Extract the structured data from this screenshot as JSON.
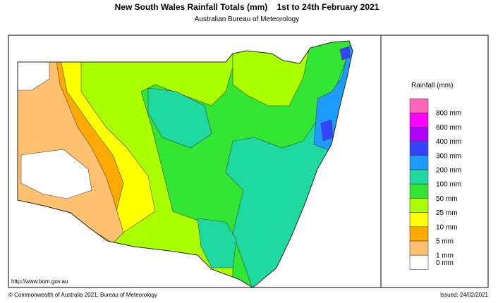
{
  "header": {
    "title": "New South Wales Rainfall Totals (mm)    1st to 24th February 2021",
    "subtitle": "Australian Bureau of Meteorology"
  },
  "legend": {
    "title": "Rainfall (mm)",
    "colors": [
      "#ff66bb",
      "#ff00ff",
      "#b000ff",
      "#3344ff",
      "#1e9bff",
      "#1fdaa0",
      "#33e633",
      "#aaff00",
      "#ffff00",
      "#ffaa00",
      "#ffc070",
      "#ffffff"
    ],
    "labels": [
      "800 mm",
      "600 mm",
      "400 mm",
      "300 mm",
      "200 mm",
      "100 mm",
      "50 mm",
      "25 mm",
      "10 mm",
      "5 mm",
      "1 mm",
      "0 mm"
    ]
  },
  "map": {
    "url": "http://www.bom.gov.au"
  },
  "footer": {
    "copyright": "© Commonwealth of Australia 2021, Bureau of Meteorology",
    "issued": "Issued: 24/02/2021"
  }
}
